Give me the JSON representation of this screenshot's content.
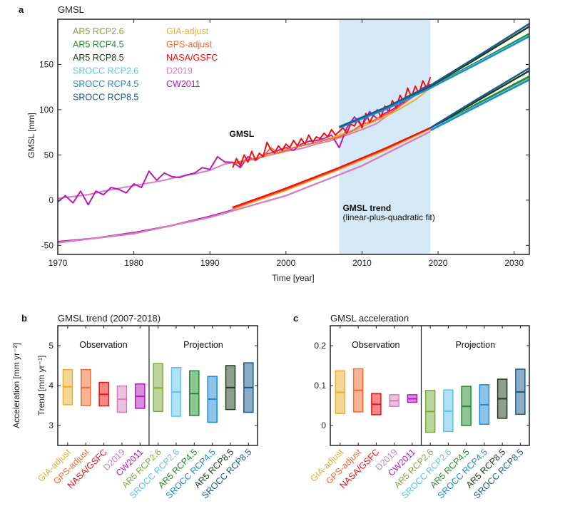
{
  "chart_data": [
    {
      "panel": "a",
      "type": "line",
      "title": "GMSL",
      "xlabel": "Time [year]",
      "ylabel": "GMSL [mm]",
      "xlim": [
        1970,
        2032
      ],
      "ylim": [
        -60,
        200
      ],
      "xticks": [
        1970,
        1980,
        1990,
        2000,
        2010,
        2020,
        2030
      ],
      "yticks": [
        -50,
        0,
        50,
        100,
        150
      ],
      "grid": false,
      "shaded_period": [
        2007,
        2019
      ],
      "annotations": [
        {
          "text": "GMSL",
          "bold": true,
          "x": 1992,
          "y": 70
        },
        {
          "text": "GMSL trend",
          "bold": true,
          "x": 2007,
          "y": -12
        },
        {
          "text": "(linear-plus-quadratic fit)",
          "bold": false,
          "x": 2007,
          "y": -22
        }
      ],
      "legend": {
        "placement": "top-left",
        "entries": [
          {
            "label": "AR5 RCP2.6",
            "color": "#7cab3c"
          },
          {
            "label": "AR5 RCP4.5",
            "color": "#1f8a2a"
          },
          {
            "label": "AR5 RCP8.5",
            "color": "#1d3d1d"
          },
          {
            "label": "SROCC RCP2.6",
            "color": "#5ec4ea"
          },
          {
            "label": "SROCC RCP4.5",
            "color": "#1e8ad6"
          },
          {
            "label": "SROCC RCP8.5",
            "color": "#1b5a8c"
          },
          {
            "label": "GIA-adjust",
            "color": "#e8b030"
          },
          {
            "label": "GPS-adjust",
            "color": "#f26a30"
          },
          {
            "label": "NASA/GSFC",
            "color": "#ee1111"
          },
          {
            "label": "D2019",
            "color": "#d77fbe"
          },
          {
            "label": "CW2011",
            "color": "#b51abf"
          }
        ]
      },
      "series": [
        {
          "name": "D2019",
          "kind": "gmsl",
          "color": "#d77fbe",
          "x": [
            1970,
            1972,
            1974,
            1976,
            1978,
            1980,
            1982,
            1984,
            1986,
            1988,
            1990,
            1992,
            1994,
            1996,
            1998,
            2000,
            2002,
            2004,
            2006,
            2008,
            2010,
            2012,
            2014,
            2016,
            2018,
            2019
          ],
          "y": [
            2,
            4,
            6,
            10,
            13,
            16,
            19,
            22,
            26,
            29,
            33,
            40,
            43,
            46,
            50,
            54,
            57,
            62,
            66,
            72,
            78,
            85,
            98,
            111,
            122,
            125
          ]
        },
        {
          "name": "CW2011",
          "kind": "gmsl",
          "color": "#b51abf",
          "x": [
            1970,
            1971,
            1972,
            1973,
            1974,
            1975,
            1976,
            1977,
            1978,
            1979,
            1980,
            1981,
            1982,
            1983,
            1984,
            1985,
            1986,
            1987,
            1988,
            1989,
            1990,
            1991,
            1992,
            1993,
            1994,
            1995,
            1996,
            1997,
            1998,
            1999,
            2000,
            2001,
            2002,
            2003,
            2004,
            2005,
            2006,
            2007,
            2008,
            2009,
            2010,
            2011,
            2012,
            2013,
            2014,
            2015,
            2016,
            2017,
            2018,
            2019
          ],
          "y": [
            -2,
            5,
            -3,
            10,
            -5,
            10,
            6,
            14,
            12,
            8,
            18,
            14,
            32,
            22,
            30,
            26,
            25,
            28,
            30,
            36,
            34,
            48,
            42,
            42,
            36,
            48,
            44,
            50,
            52,
            55,
            58,
            55,
            62,
            65,
            66,
            68,
            72,
            58,
            80,
            92,
            82,
            98,
            90,
            96,
            100,
            106,
            112,
            118,
            124,
            128
          ]
        },
        {
          "name": "GIA-adjust",
          "kind": "gmsl",
          "color": "#e8b030",
          "x": [
            1993,
            1995,
            1997,
            1999,
            2001,
            2003,
            2005,
            2007,
            2009,
            2011,
            2013,
            2015,
            2017,
            2019
          ],
          "y": [
            40,
            44,
            49,
            53,
            58,
            62,
            66,
            72,
            77,
            85,
            92,
            101,
            111,
            124
          ]
        },
        {
          "name": "GPS-adjust",
          "kind": "gmsl",
          "color": "#f26a30",
          "x": [
            1993,
            1994,
            1995,
            1996,
            1997,
            1998,
            1999,
            2000,
            2001,
            2002,
            2003,
            2004,
            2005,
            2006,
            2007,
            2008,
            2009,
            2010,
            2011,
            2012,
            2013,
            2014,
            2015,
            2016,
            2017,
            2018,
            2019
          ],
          "y": [
            40,
            42,
            44,
            46,
            48,
            58,
            52,
            55,
            58,
            60,
            62,
            64,
            66,
            68,
            70,
            74,
            78,
            84,
            86,
            90,
            94,
            98,
            104,
            110,
            116,
            120,
            126
          ]
        },
        {
          "name": "NASA/GSFC",
          "kind": "gmsl",
          "color": "#ee1111",
          "x": [
            1993,
            1993.5,
            1994,
            1994.5,
            1995,
            1995.5,
            1996,
            1996.5,
            1997,
            1997.5,
            1998,
            1998.5,
            1999,
            1999.5,
            2000,
            2000.5,
            2001,
            2001.5,
            2002,
            2002.5,
            2003,
            2003.5,
            2004,
            2004.5,
            2005,
            2005.5,
            2006,
            2006.5,
            2007,
            2007.5,
            2008,
            2008.5,
            2009,
            2009.5,
            2010,
            2010.5,
            2011,
            2011.5,
            2012,
            2012.5,
            2013,
            2013.5,
            2014,
            2014.5,
            2015,
            2015.5,
            2016,
            2016.5,
            2017,
            2017.5,
            2018,
            2018.5,
            2019
          ],
          "y": [
            36,
            46,
            38,
            50,
            42,
            54,
            44,
            52,
            48,
            64,
            56,
            52,
            60,
            55,
            62,
            58,
            66,
            60,
            68,
            62,
            72,
            64,
            70,
            68,
            74,
            70,
            78,
            72,
            76,
            80,
            74,
            84,
            82,
            90,
            80,
            96,
            86,
            94,
            100,
            92,
            104,
            98,
            110,
            102,
            116,
            108,
            124,
            114,
            126,
            118,
            132,
            124,
            136
          ]
        },
        {
          "name": "CW2011 trend",
          "kind": "trend",
          "color": "#b51abf",
          "x": [
            1970,
            1975,
            1980,
            1985,
            1990,
            1993
          ],
          "y": [
            -46,
            -42,
            -36,
            -28,
            -18,
            -11
          ]
        },
        {
          "name": "D2019 trend",
          "kind": "trend",
          "color": "#d77fbe",
          "x": [
            1970,
            1980,
            1990,
            2000,
            2010,
            2019
          ],
          "y": [
            -47,
            -37,
            -19,
            5,
            38,
            76
          ]
        },
        {
          "name": "GIA-adjust trend",
          "kind": "trend",
          "color": "#e8b030",
          "x": [
            1993,
            2000,
            2007,
            2013,
            2019
          ],
          "y": [
            -10,
            11,
            34,
            55,
            79
          ]
        },
        {
          "name": "GPS-adjust trend",
          "kind": "trend",
          "color": "#f26a30",
          "x": [
            1993,
            2000,
            2007,
            2013,
            2019
          ],
          "y": [
            -9,
            12,
            35,
            56,
            80
          ]
        },
        {
          "name": "NASA/GSFC trend",
          "kind": "trend",
          "color": "#ee1111",
          "x": [
            1993,
            2000,
            2007,
            2013,
            2019
          ],
          "y": [
            -8,
            13,
            36,
            57,
            80
          ]
        },
        {
          "name": "AR5 RCP2.6 (GMSL)",
          "kind": "projection",
          "color": "#7cab3c",
          "x": [
            2007,
            2013,
            2019,
            2025,
            2032
          ],
          "y": [
            80,
            101,
            125,
            152,
            183
          ]
        },
        {
          "name": "AR5 RCP4.5 (GMSL)",
          "kind": "projection",
          "color": "#1f8a2a",
          "x": [
            2007,
            2013,
            2019,
            2025,
            2032
          ],
          "y": [
            80,
            101,
            125,
            152,
            184
          ]
        },
        {
          "name": "AR5 RCP8.5 (GMSL)",
          "kind": "projection",
          "color": "#1d3d1d",
          "x": [
            2007,
            2013,
            2019,
            2025,
            2032
          ],
          "y": [
            81,
            102,
            126,
            156,
            192
          ]
        },
        {
          "name": "SROCC RCP2.6 (GMSL)",
          "kind": "projection",
          "color": "#5ec4ea",
          "x": [
            2007,
            2013,
            2019,
            2025,
            2032
          ],
          "y": [
            80,
            100,
            124,
            151,
            182
          ]
        },
        {
          "name": "SROCC RCP4.5 (GMSL)",
          "kind": "projection",
          "color": "#1e8ad6",
          "x": [
            2007,
            2013,
            2019,
            2025,
            2032
          ],
          "y": [
            80,
            100,
            124,
            150,
            181
          ]
        },
        {
          "name": "SROCC RCP8.5 (GMSL)",
          "kind": "projection",
          "color": "#1b5a8c",
          "x": [
            2007,
            2013,
            2019,
            2025,
            2032
          ],
          "y": [
            81,
            102,
            127,
            158,
            195
          ]
        },
        {
          "name": "AR5 RCP2.6 (trend)",
          "kind": "projection",
          "color": "#7cab3c",
          "x": [
            2019,
            2025,
            2032
          ],
          "y": [
            78,
            105,
            136
          ]
        },
        {
          "name": "AR5 RCP4.5 (trend)",
          "kind": "projection",
          "color": "#1f8a2a",
          "x": [
            2019,
            2025,
            2032
          ],
          "y": [
            78,
            106,
            137
          ]
        },
        {
          "name": "AR5 RCP8.5 (trend)",
          "kind": "projection",
          "color": "#1d3d1d",
          "x": [
            2019,
            2025,
            2032
          ],
          "y": [
            79,
            109,
            143
          ]
        },
        {
          "name": "SROCC RCP2.6 (trend)",
          "kind": "projection",
          "color": "#5ec4ea",
          "x": [
            2019,
            2025,
            2032
          ],
          "y": [
            78,
            104,
            134
          ]
        },
        {
          "name": "SROCC RCP4.5 (trend)",
          "kind": "projection",
          "color": "#1e8ad6",
          "x": [
            2019,
            2025,
            2032
          ],
          "y": [
            77,
            103,
            133
          ]
        },
        {
          "name": "SROCC RCP8.5 (trend)",
          "kind": "projection",
          "color": "#1b5a8c",
          "x": [
            2019,
            2025,
            2032
          ],
          "y": [
            80,
            111,
            146
          ]
        }
      ]
    },
    {
      "panel": "b",
      "type": "box",
      "title": "GMSL trend (2007-2018)",
      "xlabel": "",
      "ylabel": "Trend [mm yr⁻¹]",
      "ylim": [
        2.5,
        5.5
      ],
      "yticks": [
        3,
        4,
        5
      ],
      "group_labels": [
        "Observation",
        "Projection"
      ],
      "categories": [
        "GIA-adjust",
        "GPS-adjust",
        "NASA/GSFC",
        "D2019",
        "CW2011",
        "AR5 RCP2.6",
        "SROCC RCP2.6",
        "AR5 RCP4.5",
        "SROCC RCP4.5",
        "AR5 RCP8.5",
        "SROCC RCP8.5"
      ],
      "groups": [
        "Observation",
        "Observation",
        "Observation",
        "Observation",
        "Observation",
        "Projection",
        "Projection",
        "Projection",
        "Projection",
        "Projection",
        "Projection"
      ],
      "colors": [
        "#e8b030",
        "#f26a30",
        "#ee1111",
        "#d77fbe",
        "#b51abf",
        "#7cab3c",
        "#5ec4ea",
        "#1f8a2a",
        "#1e8ad6",
        "#1d3d1d",
        "#1b5a8c"
      ],
      "low": [
        3.52,
        3.5,
        3.49,
        3.33,
        3.43,
        3.35,
        3.23,
        3.25,
        3.08,
        3.4,
        3.33
      ],
      "median": [
        3.97,
        3.95,
        3.78,
        3.66,
        3.73,
        3.94,
        3.84,
        3.8,
        3.66,
        3.95,
        3.95
      ],
      "high": [
        4.4,
        4.4,
        4.08,
        3.99,
        4.04,
        4.55,
        4.45,
        4.37,
        4.23,
        4.5,
        4.57
      ]
    },
    {
      "panel": "c",
      "type": "box",
      "title": "GMSL acceleration",
      "xlabel": "",
      "ylabel": "Acceleration [mm yr⁻²]",
      "ylim": [
        -0.05,
        0.25
      ],
      "yticks": [
        0,
        0.1,
        0.2
      ],
      "group_labels": [
        "Observation",
        "Projection"
      ],
      "categories": [
        "GIA-adjust",
        "GPS-adjust",
        "NASA/GSFC",
        "D2019",
        "CW2011",
        "AR5 RCP2.6",
        "SROCC RCP2.6",
        "AR5 RCP4.5",
        "SROCC RCP4.5",
        "AR5 RCP8.5",
        "SROCC RCP8.5"
      ],
      "groups": [
        "Observation",
        "Observation",
        "Observation",
        "Observation",
        "Observation",
        "Projection",
        "Projection",
        "Projection",
        "Projection",
        "Projection",
        "Projection"
      ],
      "colors": [
        "#e8b030",
        "#f26a30",
        "#ee1111",
        "#d77fbe",
        "#b51abf",
        "#7cab3c",
        "#5ec4ea",
        "#1f8a2a",
        "#1e8ad6",
        "#1d3d1d",
        "#1b5a8c"
      ],
      "low": [
        0.03,
        0.034,
        0.027,
        0.048,
        0.058,
        -0.017,
        -0.015,
        0.0,
        0.003,
        0.018,
        0.028
      ],
      "median": [
        0.083,
        0.088,
        0.053,
        0.062,
        0.067,
        0.035,
        0.036,
        0.048,
        0.052,
        0.067,
        0.084
      ],
      "high": [
        0.137,
        0.142,
        0.08,
        0.077,
        0.077,
        0.088,
        0.089,
        0.098,
        0.102,
        0.116,
        0.141
      ]
    }
  ],
  "panel_letters": [
    "a",
    "b",
    "c"
  ]
}
